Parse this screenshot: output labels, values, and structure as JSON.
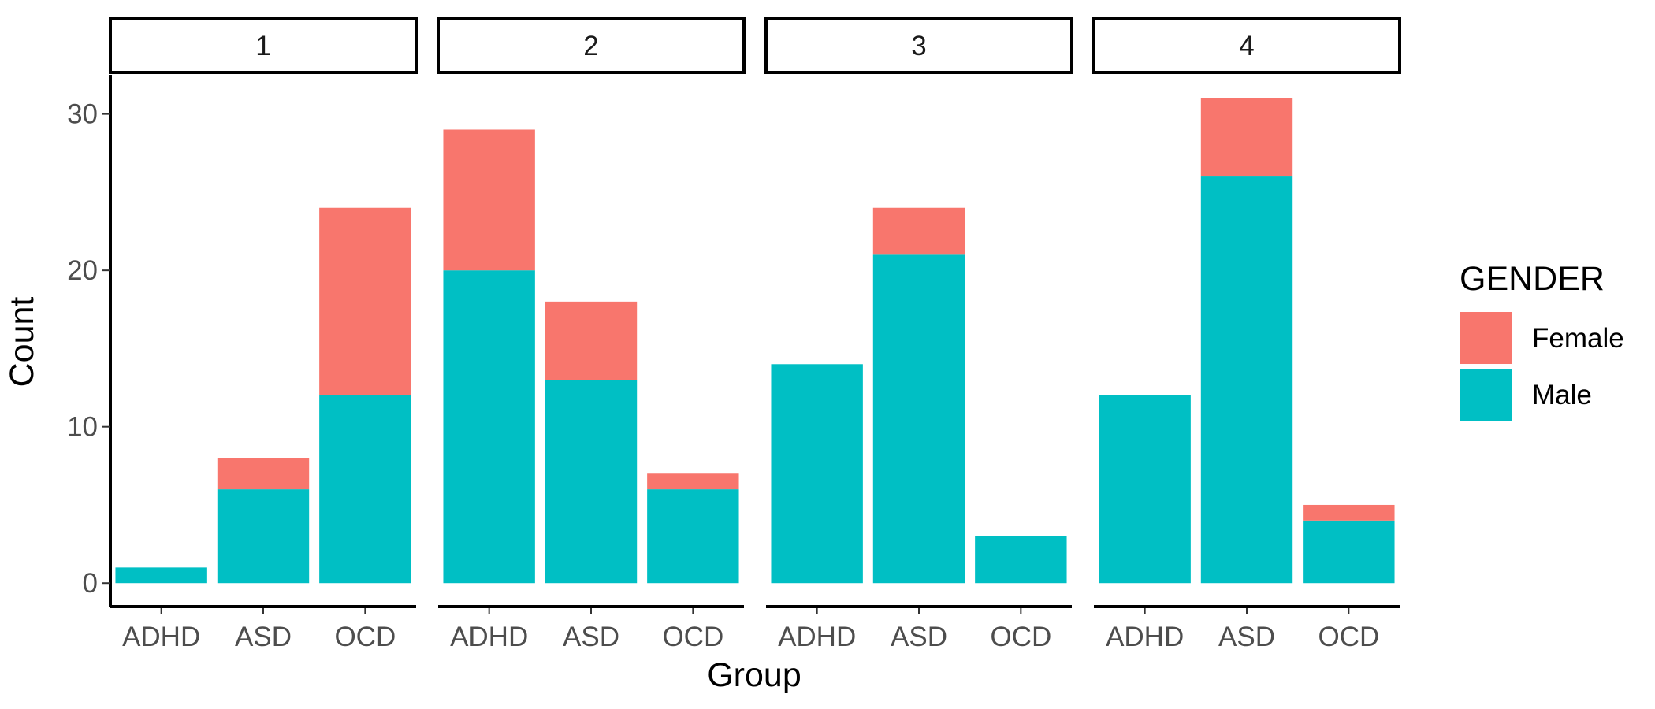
{
  "chart_data": {
    "type": "bar",
    "stacked": true,
    "facets": [
      "1",
      "2",
      "3",
      "4"
    ],
    "categories": [
      "ADHD",
      "ASD",
      "OCD"
    ],
    "series": [
      {
        "name": "Female",
        "color": "#F8766D",
        "values": {
          "1": [
            0,
            2,
            12
          ],
          "2": [
            9,
            5,
            1
          ],
          "3": [
            0,
            3,
            0
          ],
          "4": [
            0,
            5,
            1
          ]
        }
      },
      {
        "name": "Male",
        "color": "#00BFC4",
        "values": {
          "1": [
            1,
            6,
            12
          ],
          "2": [
            20,
            13,
            6
          ],
          "3": [
            14,
            21,
            3
          ],
          "4": [
            12,
            26,
            4
          ]
        }
      }
    ],
    "xlabel": "Group",
    "ylabel": "Count",
    "ylim": [
      -1.5,
      32.5
    ],
    "yticks": [
      0,
      10,
      20,
      30
    ],
    "legend": {
      "title": "GENDER",
      "position": "right"
    },
    "grid": false
  }
}
